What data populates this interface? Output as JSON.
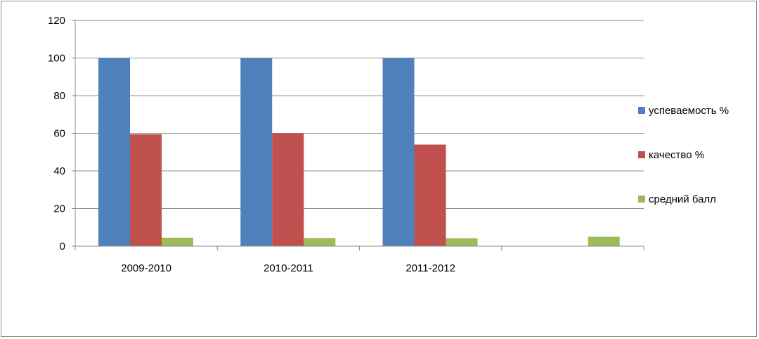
{
  "chart_data": {
    "type": "bar",
    "categories": [
      "2009-2010",
      "2010-2011",
      "2011-2012",
      ""
    ],
    "series": [
      {
        "name": "успеваемость %",
        "color": "#4f81bd",
        "values": [
          100,
          100,
          100,
          null
        ]
      },
      {
        "name": "качество %",
        "color": "#c0504d",
        "values": [
          59.5,
          60,
          54,
          null
        ]
      },
      {
        "name": "средний балл",
        "color": "#9bbb59",
        "values": [
          4.5,
          4.3,
          4.2,
          5
        ]
      }
    ],
    "ylim": [
      0,
      120
    ],
    "yticks": [
      0,
      20,
      40,
      60,
      80,
      100,
      120
    ],
    "grid": true,
    "legend": "right"
  }
}
